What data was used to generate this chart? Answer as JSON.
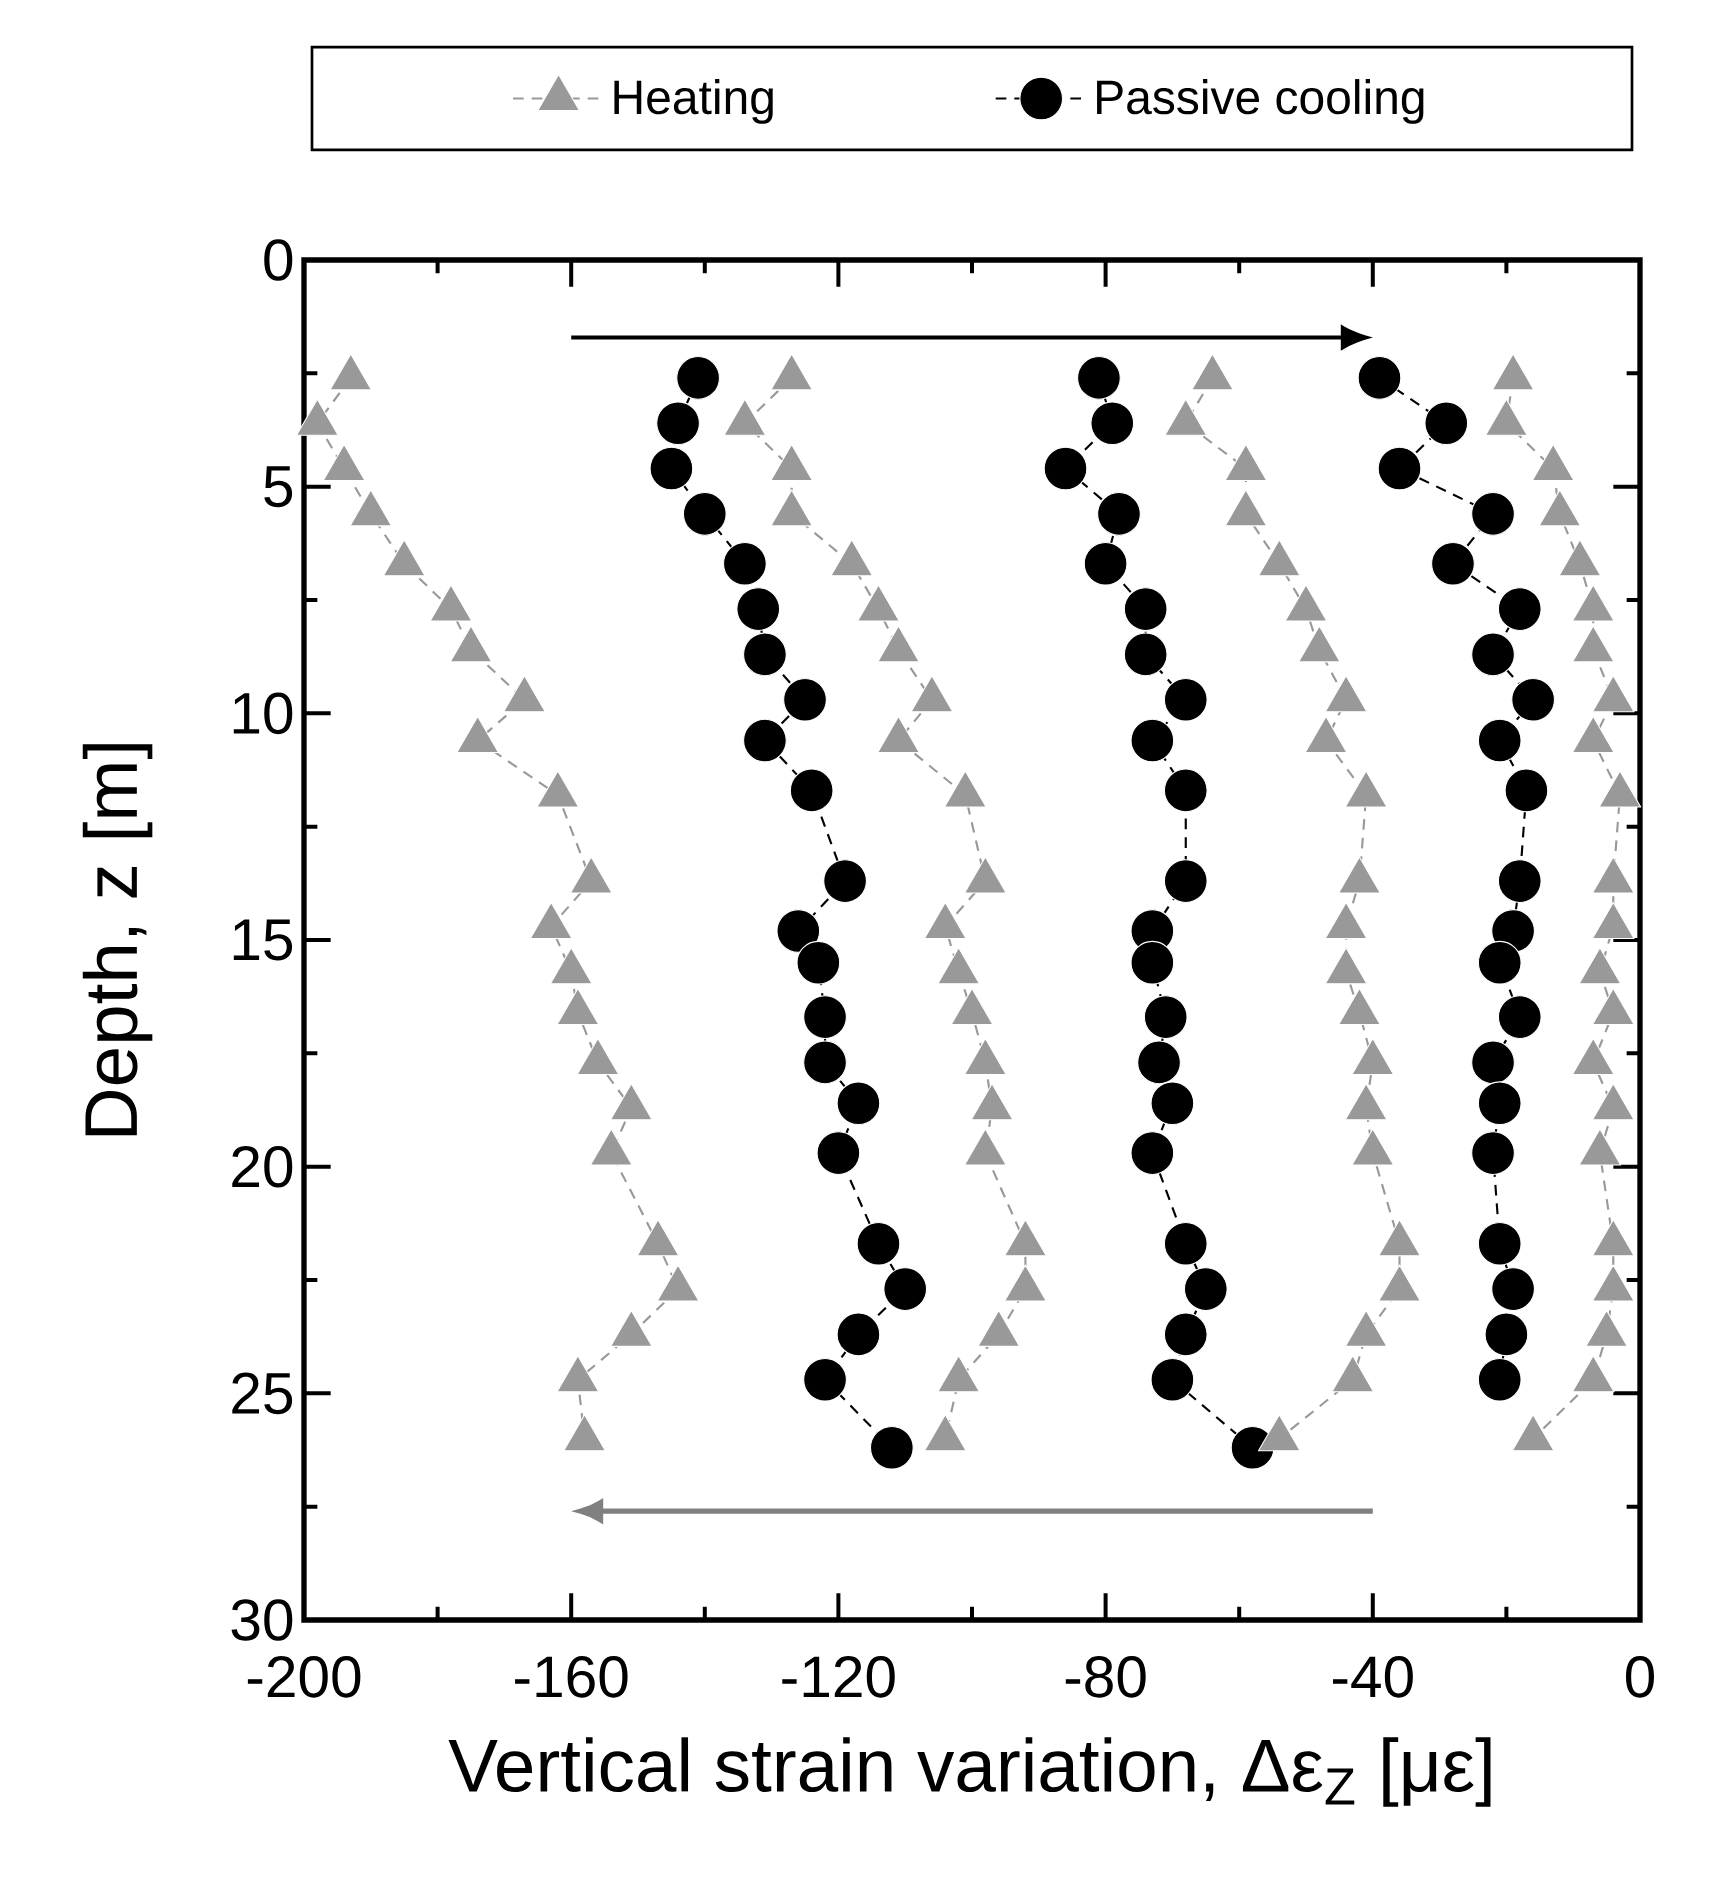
{
  "chart_data": {
    "type": "line",
    "xlabel": "Vertical strain variation, Δε$_{Z}$ [με]",
    "ylabel": "Depth, z [m]",
    "xlim": [
      -200,
      0
    ],
    "ylim": [
      30,
      0
    ],
    "xticks": [
      -200,
      {
        "value": -180,
        "label": null
      },
      -160,
      {
        "value": -140,
        "label": null
      },
      -120,
      {
        "value": -100,
        "label": null
      },
      -80,
      {
        "value": -60,
        "label": null
      },
      -40,
      {
        "value": -20,
        "label": null
      },
      0
    ],
    "yticks": [
      0,
      {
        "value": 2.5,
        "label": null
      },
      5,
      {
        "value": 7.5,
        "label": null
      },
      10,
      {
        "value": 12.5,
        "label": null
      },
      15,
      {
        "value": 17.5,
        "label": null
      },
      20,
      {
        "value": 22.5,
        "label": null
      },
      25,
      {
        "value": 27.5,
        "label": null
      },
      30
    ],
    "legend": "top",
    "series": [
      {
        "name": "Heating",
        "color": "#999999",
        "marker": "triangle",
        "line_style": "dashed",
        "x": [
          -193,
          -198,
          -194,
          -190,
          -185,
          -178,
          -175,
          -167,
          -174,
          -162,
          -157,
          -163,
          -160,
          -159,
          -156,
          -151,
          -154,
          -147,
          -144,
          -151,
          -159,
          -158
        ],
        "values": [
          2.6,
          3.6,
          4.6,
          5.6,
          6.7,
          7.7,
          8.6,
          9.7,
          10.6,
          11.8,
          13.7,
          14.7,
          15.7,
          16.6,
          17.7,
          18.7,
          19.7,
          21.7,
          22.7,
          23.7,
          24.7,
          26.0
        ]
      },
      {
        "name": "Passive cooling",
        "color": "#000000",
        "marker": "circle",
        "line_style": "dashed",
        "x": [
          -141,
          -144,
          -145,
          -140,
          -134,
          -132,
          -131,
          -125,
          -131,
          -124,
          -119,
          -126,
          -123,
          -122,
          -122,
          -117,
          -120,
          -114,
          -110,
          -117,
          -122,
          -112
        ],
        "values": [
          2.6,
          3.6,
          4.6,
          5.6,
          6.7,
          7.7,
          8.7,
          9.7,
          10.6,
          11.7,
          13.7,
          14.8,
          15.5,
          16.7,
          17.7,
          18.6,
          19.7,
          21.7,
          22.7,
          23.7,
          24.7,
          26.2
        ]
      },
      {
        "color": "#999999",
        "marker": "triangle",
        "line_style": "dashed",
        "x": [
          -127,
          -134,
          -127,
          -127,
          -118,
          -114,
          -111,
          -106,
          -111,
          -101,
          -98,
          -104,
          -102,
          -100,
          -98,
          -97,
          -98,
          -92,
          -92,
          -96,
          -102,
          -104
        ],
        "values": [
          2.6,
          3.6,
          4.6,
          5.6,
          6.7,
          7.7,
          8.6,
          9.7,
          10.6,
          11.8,
          13.7,
          14.7,
          15.7,
          16.6,
          17.7,
          18.7,
          19.7,
          21.7,
          22.7,
          23.7,
          24.7,
          26.0
        ]
      },
      {
        "color": "#000000",
        "marker": "circle",
        "line_style": "dashed",
        "x": [
          -81,
          -79,
          -86,
          -78,
          -80,
          -74,
          -74,
          -68,
          -73,
          -68,
          -68,
          -73,
          -73,
          -71,
          -72,
          -70,
          -73,
          -68,
          -65,
          -68,
          -70,
          -58
        ],
        "values": [
          2.6,
          3.6,
          4.6,
          5.6,
          6.7,
          7.7,
          8.7,
          9.7,
          10.6,
          11.7,
          13.7,
          14.8,
          15.5,
          16.7,
          17.7,
          18.6,
          19.7,
          21.7,
          22.7,
          23.7,
          24.7,
          26.2
        ]
      },
      {
        "color": "#999999",
        "marker": "triangle",
        "line_style": "dashed",
        "x": [
          -64,
          -68,
          -59,
          -59,
          -54,
          -50,
          -48,
          -44,
          -47,
          -41,
          -42,
          -44,
          -44,
          -42,
          -40,
          -41,
          -40,
          -36,
          -36,
          -41,
          -43,
          -54
        ],
        "values": [
          2.6,
          3.6,
          4.6,
          5.6,
          6.7,
          7.7,
          8.6,
          9.7,
          10.6,
          11.8,
          13.7,
          14.7,
          15.7,
          16.6,
          17.7,
          18.7,
          19.7,
          21.7,
          22.7,
          23.7,
          24.7,
          26.0
        ]
      },
      {
        "color": "#000000",
        "marker": "circle",
        "line_style": "dashed",
        "x": [
          -39,
          -29,
          -36,
          -22,
          -28,
          -18,
          -22,
          -16,
          -21,
          -17,
          -18,
          -19,
          -21,
          -18,
          -22,
          -21,
          -22,
          -21,
          -19,
          -20,
          -21
        ],
        "values": [
          2.6,
          3.6,
          4.6,
          5.6,
          6.7,
          7.7,
          8.7,
          9.7,
          10.6,
          11.7,
          13.7,
          14.8,
          15.5,
          16.7,
          17.7,
          18.6,
          19.7,
          21.7,
          22.7,
          23.7,
          24.7
        ]
      },
      {
        "color": "#999999",
        "marker": "triangle",
        "line_style": "dashed",
        "x": [
          -19,
          -20,
          -13,
          -12,
          -9,
          -7,
          -7,
          -4,
          -7,
          -3,
          -4,
          -4,
          -6,
          -4,
          -7,
          -4,
          -6,
          -4,
          -4,
          -5,
          -7,
          -16
        ],
        "values": [
          2.6,
          3.6,
          4.6,
          5.6,
          6.7,
          7.7,
          8.6,
          9.7,
          10.6,
          11.8,
          13.7,
          14.7,
          15.7,
          16.6,
          17.7,
          18.7,
          19.7,
          21.7,
          22.7,
          23.7,
          24.7,
          26.0
        ]
      }
    ]
  }
}
